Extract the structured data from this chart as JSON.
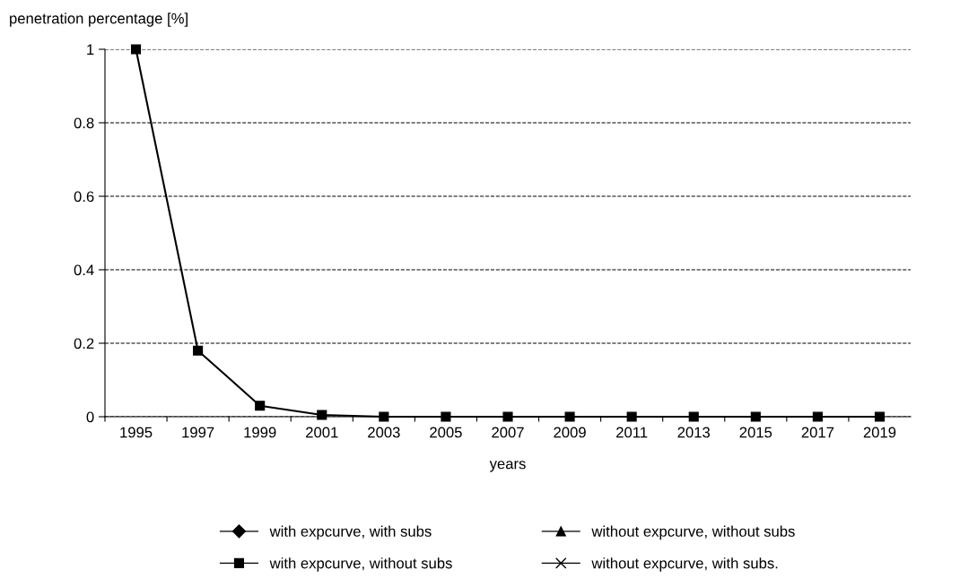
{
  "chart_data": {
    "type": "line",
    "ylabel": "penetration percentage [%]",
    "xlabel": "years",
    "categories": [
      "1995",
      "1997",
      "1999",
      "2001",
      "2003",
      "2005",
      "2007",
      "2009",
      "2011",
      "2013",
      "2015",
      "2017",
      "2019"
    ],
    "series": [
      {
        "name": "with expcurve, with subs",
        "color": "#000000",
        "marker": "diamond",
        "values": [
          null,
          null,
          null,
          null,
          null,
          null,
          null,
          null,
          null,
          null,
          null,
          null,
          null
        ]
      },
      {
        "name": "with expcurve, without subs",
        "color": "#000000",
        "marker": "square",
        "values": [
          1,
          0.18,
          0.03,
          0.005,
          0,
          0,
          0,
          0,
          0,
          0,
          0,
          0,
          0
        ]
      },
      {
        "name": "without expcurve, without subs",
        "color": "#000000",
        "marker": "triangle",
        "values": [
          null,
          null,
          null,
          null,
          null,
          null,
          null,
          null,
          null,
          null,
          null,
          null,
          null
        ]
      },
      {
        "name": "without expcurve, with subs.",
        "color": "#000000",
        "marker": "cross",
        "values": [
          null,
          null,
          null,
          null,
          null,
          null,
          null,
          null,
          null,
          null,
          null,
          null,
          null
        ]
      }
    ],
    "ylim": [
      0,
      1
    ],
    "yticks": [
      0,
      0.2,
      0.4,
      0.6,
      0.8,
      1
    ],
    "grid": "y",
    "legend": "bottom",
    "line_style": "solid"
  }
}
